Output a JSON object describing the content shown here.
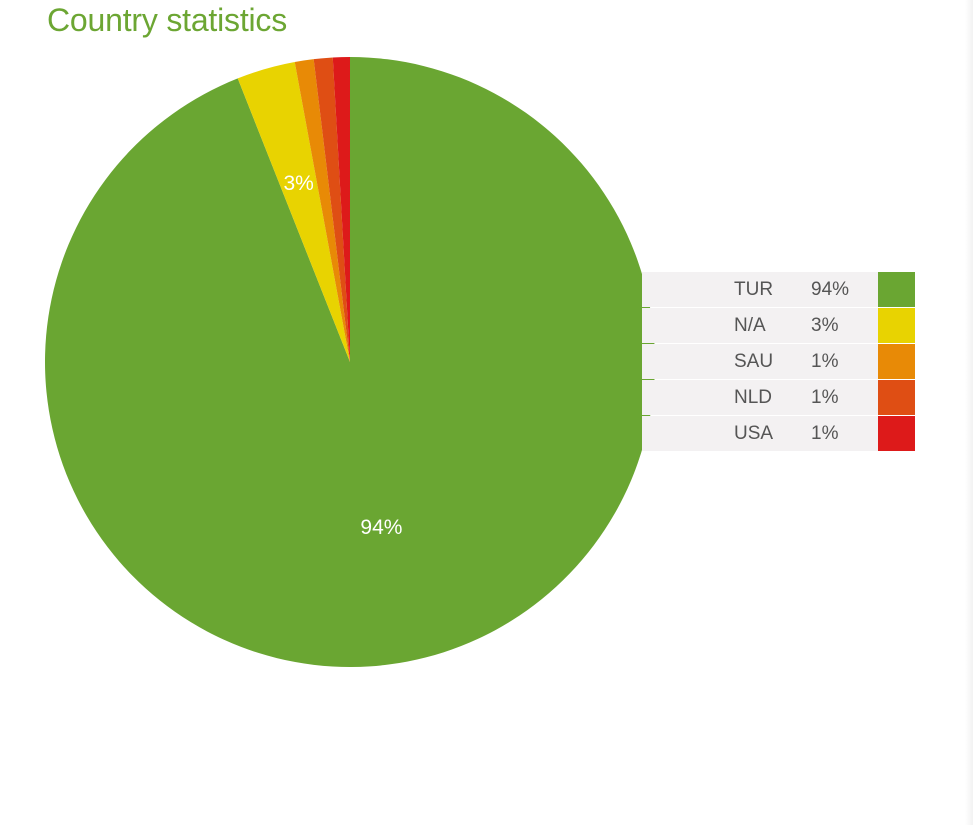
{
  "title": "Country statistics",
  "chart_data": {
    "type": "pie",
    "title": "Country statistics",
    "slices": [
      {
        "label": "TUR",
        "percent_label": "94%",
        "value": 94.0,
        "color": "#6aa632"
      },
      {
        "label": "N/A",
        "percent_label": "3%",
        "value": 3.1,
        "color": "#e8d301"
      },
      {
        "label": "SAU",
        "percent_label": "1%",
        "value": 1.0,
        "color": "#e88a06"
      },
      {
        "label": "NLD",
        "percent_label": "1%",
        "value": 1.0,
        "color": "#df4e14"
      },
      {
        "label": "USA",
        "percent_label": "1%",
        "value": 0.9,
        "color": "#dd1a1a"
      }
    ],
    "slice_labels": [
      "94%",
      "3%"
    ],
    "legend_placement": "right"
  }
}
